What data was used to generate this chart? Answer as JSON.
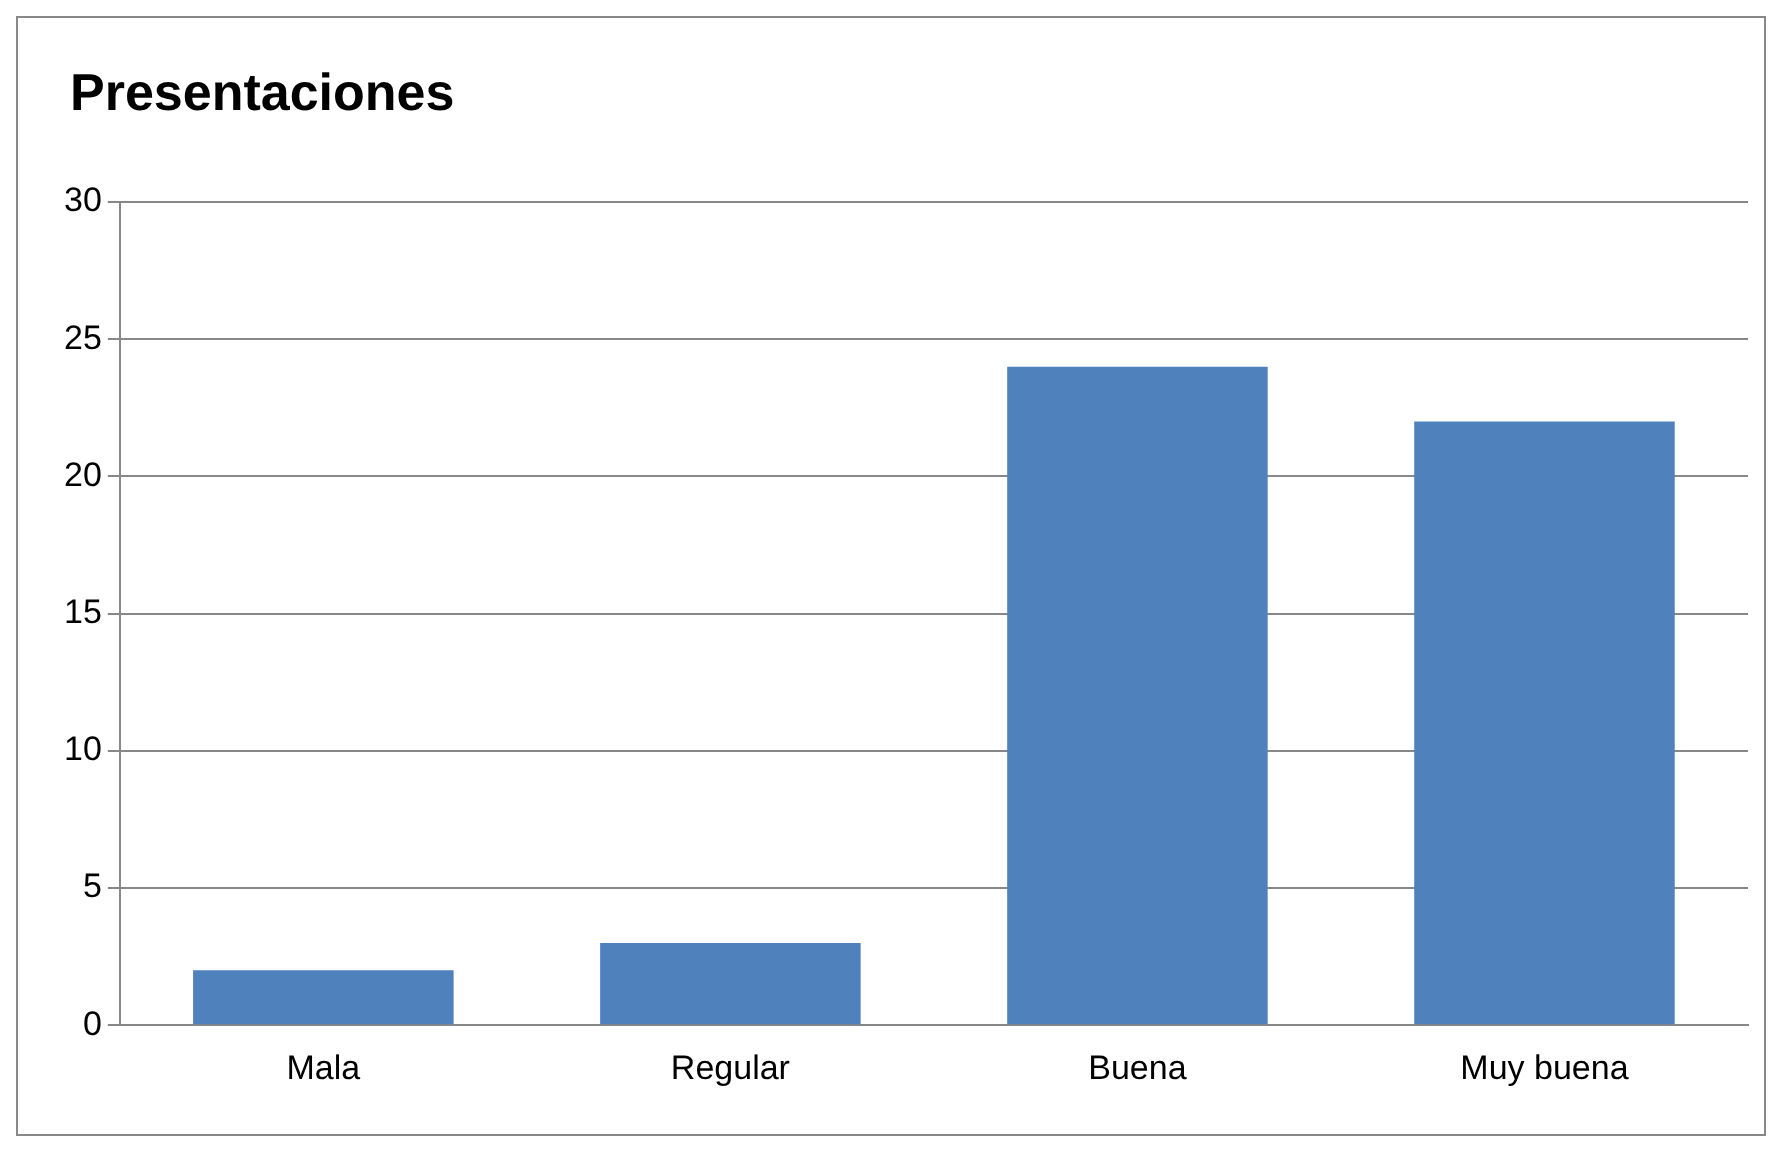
{
  "chart_data": {
    "type": "bar",
    "title": "Presentaciones",
    "categories": [
      "Mala",
      "Regular",
      "Buena",
      "Muy buena"
    ],
    "values": [
      2,
      3,
      24,
      22
    ],
    "color": "#4f81bd",
    "ylim": [
      0,
      30
    ],
    "yticks": [
      0,
      5,
      10,
      15,
      20,
      25,
      30
    ],
    "grid": "y",
    "legend": false
  }
}
